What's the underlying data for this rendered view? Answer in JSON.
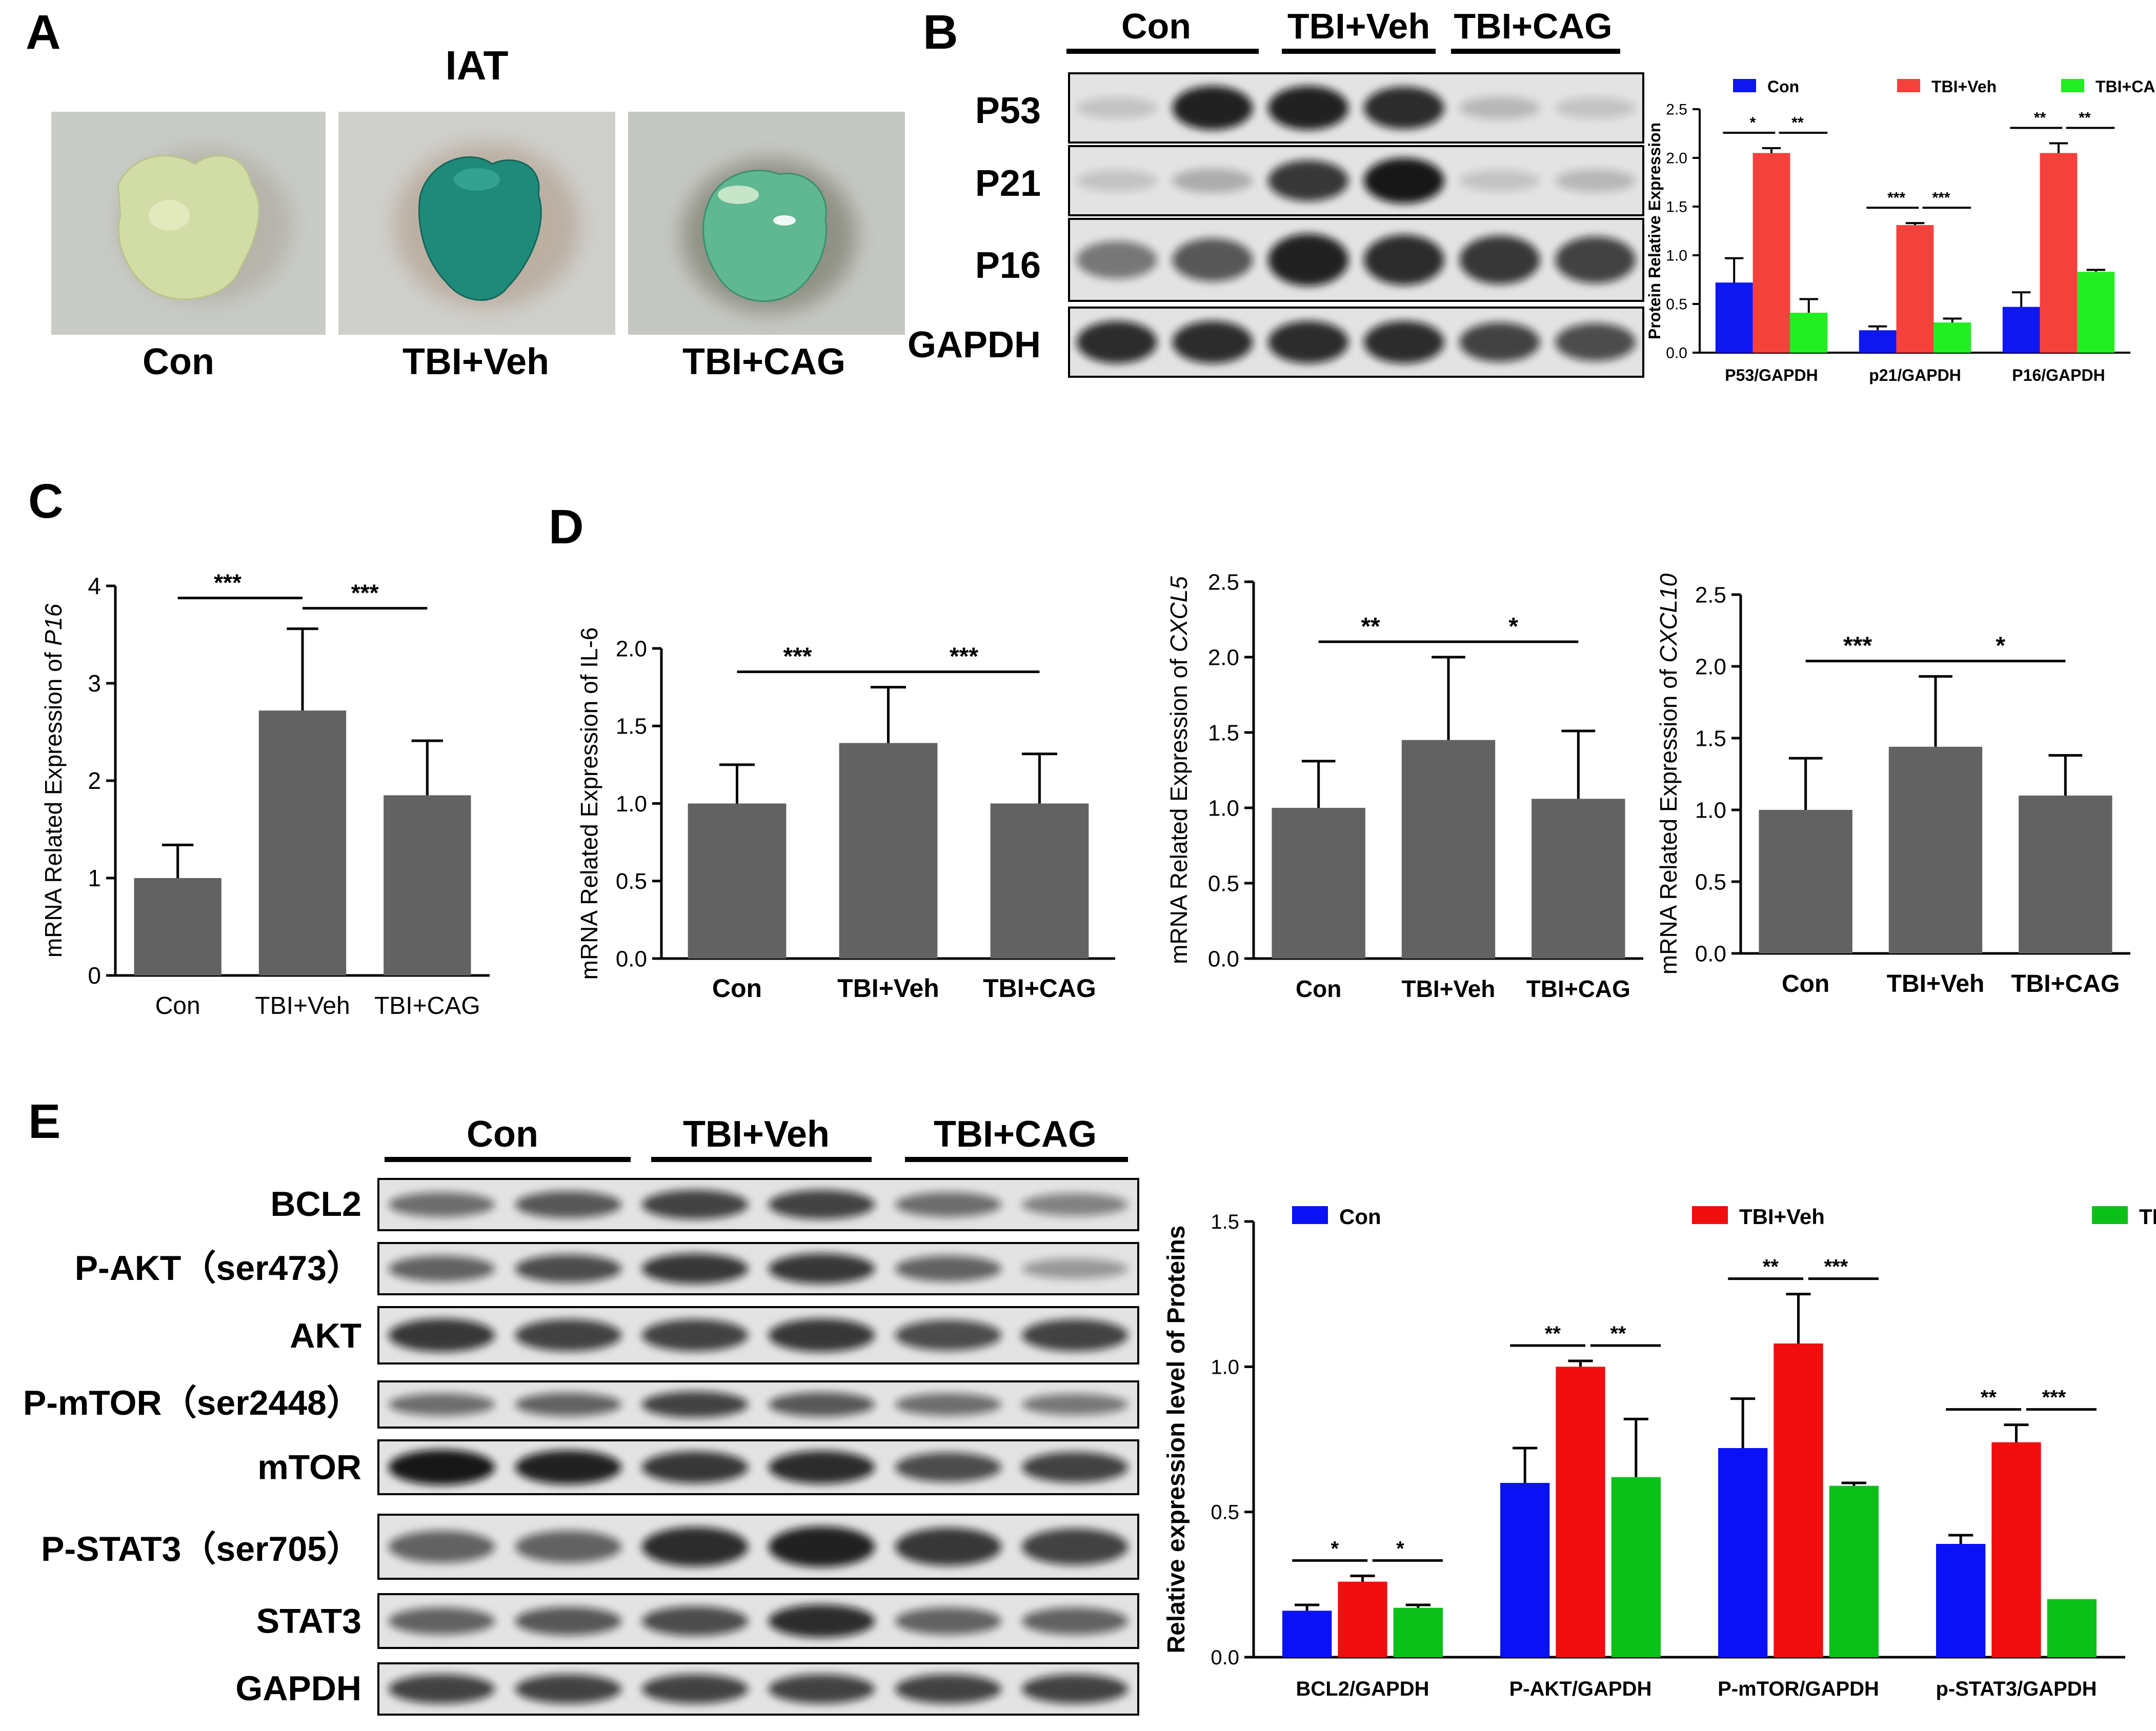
{
  "panel_labels": {
    "a": "A",
    "b": "B",
    "c": "C",
    "d": "D",
    "e": "E"
  },
  "panel_a": {
    "title": "IAT",
    "photos": [
      "Con",
      "TBI+Veh",
      "TBI+CAG"
    ],
    "colors": {
      "background": "#c9ccc6",
      "con_tissue": "#d2dca6",
      "veh_tissue": "#1f8a7a",
      "cag_tissue": "#5fb891"
    }
  },
  "blot_b": {
    "groups": [
      "Con",
      "TBI+Veh",
      "TBI+CAG"
    ],
    "rows": [
      {
        "label": "P53",
        "intensity": [
          0.15,
          0.9,
          0.9,
          0.85,
          0.2,
          0.15
        ]
      },
      {
        "label": "P21",
        "intensity": [
          0.15,
          0.25,
          0.8,
          0.95,
          0.15,
          0.2
        ]
      },
      {
        "label": "P16",
        "intensity": [
          0.5,
          0.65,
          0.9,
          0.85,
          0.8,
          0.75
        ]
      },
      {
        "label": "GAPDH",
        "intensity": [
          0.85,
          0.85,
          0.85,
          0.85,
          0.75,
          0.7
        ]
      }
    ]
  },
  "blot_e": {
    "groups": [
      "Con",
      "TBI+Veh",
      "TBI+CAG"
    ],
    "rows": [
      {
        "label": "BCL2",
        "intensity": [
          0.55,
          0.65,
          0.75,
          0.75,
          0.55,
          0.45
        ]
      },
      {
        "label": "P-AKT（ser473）",
        "intensity": [
          0.6,
          0.7,
          0.8,
          0.8,
          0.6,
          0.35
        ]
      },
      {
        "label": "AKT",
        "intensity": [
          0.8,
          0.75,
          0.75,
          0.8,
          0.7,
          0.75
        ]
      },
      {
        "label": "P-mTOR（ser2448）",
        "intensity": [
          0.55,
          0.6,
          0.75,
          0.65,
          0.55,
          0.5
        ]
      },
      {
        "label": "mTOR",
        "intensity": [
          0.95,
          0.9,
          0.8,
          0.85,
          0.7,
          0.75
        ]
      },
      {
        "label": "P-STAT3（ser705）",
        "intensity": [
          0.6,
          0.6,
          0.85,
          0.9,
          0.8,
          0.75
        ]
      },
      {
        "label": "STAT3",
        "intensity": [
          0.6,
          0.65,
          0.7,
          0.85,
          0.6,
          0.6
        ]
      },
      {
        "label": "GAPDH",
        "intensity": [
          0.75,
          0.75,
          0.75,
          0.75,
          0.75,
          0.75
        ]
      }
    ]
  },
  "chart_data": [
    {
      "id": "B",
      "type": "bar",
      "categories": [
        "P53/GAPDH",
        "p21/GAPDH",
        "P16/GAPDH"
      ],
      "series": [
        {
          "name": "Con",
          "color": "#0f17f0",
          "values": [
            0.72,
            0.23,
            0.47
          ],
          "errors": [
            0.25,
            0.04,
            0.15
          ]
        },
        {
          "name": "TBI+Veh",
          "color": "#f5413b",
          "values": [
            2.05,
            1.31,
            2.05
          ],
          "errors": [
            0.05,
            0.02,
            0.1
          ]
        },
        {
          "name": "TBI+CAG",
          "color": "#22ee22",
          "values": [
            0.41,
            0.31,
            0.83
          ],
          "errors": [
            0.14,
            0.04,
            0.02
          ]
        }
      ],
      "sig": [
        [
          "*",
          "**"
        ],
        [
          "***",
          "***"
        ],
        [
          "**",
          "**"
        ]
      ],
      "ylabel": "Protein Relative Expression",
      "ylim": [
        0,
        2.5
      ],
      "yticks": [
        "0.0",
        "0.5",
        "1.0",
        "1.5",
        "2.0",
        "2.5"
      ]
    },
    {
      "id": "C",
      "type": "bar",
      "categories": [
        "Con",
        "TBI+Veh",
        "TBI+CAG"
      ],
      "values": [
        1.0,
        2.72,
        1.85
      ],
      "errors": [
        0.34,
        0.84,
        0.56
      ],
      "sig": [
        "***",
        "***"
      ],
      "ylabel": "mRNA Related Expression of ",
      "ylabel_gene": "P16",
      "ylim": [
        0,
        4
      ],
      "yticks": [
        "0",
        "1",
        "2",
        "3",
        "4"
      ]
    },
    {
      "id": "D1",
      "type": "bar",
      "categories": [
        "Con",
        "TBI+Veh",
        "TBI+CAG"
      ],
      "values": [
        1.0,
        1.39,
        1.0
      ],
      "errors": [
        0.25,
        0.36,
        0.32
      ],
      "sig": [
        "***",
        "***"
      ],
      "ylabel": "mRNA Related Expression of IL-6",
      "ylim": [
        0,
        2.0
      ],
      "yticks": [
        "0.0",
        "0.5",
        "1.0",
        "1.5",
        "2.0"
      ]
    },
    {
      "id": "D2",
      "type": "bar",
      "categories": [
        "Con",
        "TBI+Veh",
        "TBI+CAG"
      ],
      "values": [
        1.0,
        1.45,
        1.06
      ],
      "errors": [
        0.31,
        0.55,
        0.45
      ],
      "sig": [
        "**",
        "*"
      ],
      "ylabel": "mRNA Related Expression of ",
      "ylabel_gene": "CXCL5",
      "ylim": [
        0,
        2.5
      ],
      "yticks": [
        "0.0",
        "0.5",
        "1.0",
        "1.5",
        "2.0",
        "2.5"
      ]
    },
    {
      "id": "D3",
      "type": "bar",
      "categories": [
        "Con",
        "TBI+Veh",
        "TBI+CAG"
      ],
      "values": [
        1.0,
        1.44,
        1.1
      ],
      "errors": [
        0.36,
        0.49,
        0.28
      ],
      "sig": [
        "***",
        "*"
      ],
      "ylabel": "mRNA Related Expression of ",
      "ylabel_gene": "CXCL10",
      "ylim": [
        0,
        2.5
      ],
      "yticks": [
        "0.0",
        "0.5",
        "1.0",
        "1.5",
        "2.0",
        "2.5"
      ]
    },
    {
      "id": "E",
      "type": "bar",
      "categories": [
        "BCL2/GAPDH",
        "P-AKT/GAPDH",
        "P-mTOR/GAPDH",
        "p-STAT3/GAPDH"
      ],
      "series": [
        {
          "name": "Con",
          "color": "#0a12f5",
          "values": [
            0.16,
            0.6,
            0.72,
            0.39
          ],
          "errors": [
            0.02,
            0.12,
            0.17,
            0.03
          ]
        },
        {
          "name": "TBI+Veh",
          "color": "#f00e0e",
          "values": [
            0.26,
            1.0,
            1.08,
            0.74
          ],
          "errors": [
            0.02,
            0.02,
            0.17,
            0.06
          ]
        },
        {
          "name": "TBI+CAG",
          "color": "#0cc01a",
          "values": [
            0.17,
            0.62,
            0.59,
            0.2
          ],
          "errors": [
            0.01,
            0.2,
            0.01,
            0.0
          ]
        }
      ],
      "sig": [
        [
          "*",
          "*"
        ],
        [
          "**",
          "**"
        ],
        [
          "**",
          "***"
        ],
        [
          "**",
          "***"
        ]
      ],
      "ylabel": "Relative expression level of Proteins",
      "ylim": [
        0,
        1.5
      ],
      "yticks": [
        "0.0",
        "0.5",
        "1.0",
        "1.5"
      ]
    }
  ]
}
